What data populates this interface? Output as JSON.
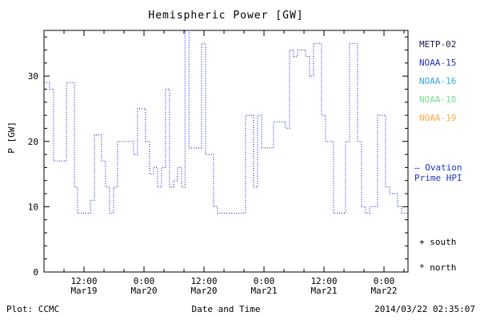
{
  "title": "Hemispheric Power [GW]",
  "footer": {
    "plot_credit": "Plot: CCMC",
    "timestamp": "2014/03/22 02:35:07"
  },
  "legend": {
    "satellites": [
      {
        "label": "METP-02",
        "color": "#1b1b4d"
      },
      {
        "label": "NOAA-15",
        "color": "#2233bb"
      },
      {
        "label": "NOAA-16",
        "color": "#33aadd"
      },
      {
        "label": "NOAA-18",
        "color": "#77dd88"
      },
      {
        "label": "NOAA-19",
        "color": "#ffaa44"
      }
    ],
    "line_entry": {
      "label": "Ovation Prime HPI",
      "display": "– Ovation\nPrime HPI",
      "color": "#2233bb"
    },
    "markers": [
      {
        "symbol": "+",
        "label": "south"
      },
      {
        "symbol": "*",
        "label": "north"
      }
    ]
  },
  "chart_data": {
    "type": "line",
    "subtype": "step-post",
    "line_style": "dotted",
    "title": "Hemispheric Power [GW]",
    "xlabel": "Date and Time",
    "ylabel": "P [GW]",
    "axis_color": "#000000",
    "x_unit": "hours since start of plot (2014 Mar 19 ~04:00 UT)",
    "xlim": [
      0,
      72.8
    ],
    "ylim": [
      0,
      37
    ],
    "yticks": [
      0,
      10,
      20,
      30
    ],
    "ytick_minor_interval": 2,
    "xtick_minor_interval": 4,
    "xticks": [
      {
        "pos": 8,
        "time": "12:00",
        "date": "Mar19"
      },
      {
        "pos": 20,
        "time": "0:00",
        "date": "Mar20"
      },
      {
        "pos": 32,
        "time": "12:00",
        "date": "Mar20"
      },
      {
        "pos": 44,
        "time": "0:00",
        "date": "Mar21"
      },
      {
        "pos": 56,
        "time": "12:00",
        "date": "Mar21"
      },
      {
        "pos": 68,
        "time": "0:00",
        "date": "Mar22"
      }
    ],
    "series": [
      {
        "name": "Ovation Prime HPI",
        "color": "#2233bb",
        "points": [
          [
            0,
            29
          ],
          [
            1.1,
            28
          ],
          [
            1.9,
            17
          ],
          [
            4.5,
            29
          ],
          [
            6.1,
            13
          ],
          [
            6.7,
            9
          ],
          [
            9.3,
            11
          ],
          [
            10.1,
            21
          ],
          [
            11.5,
            17
          ],
          [
            12.3,
            13
          ],
          [
            13.1,
            9
          ],
          [
            13.9,
            13
          ],
          [
            14.7,
            20
          ],
          [
            17.9,
            18
          ],
          [
            18.7,
            25
          ],
          [
            20.3,
            20
          ],
          [
            21.1,
            15
          ],
          [
            21.9,
            16
          ],
          [
            22.7,
            13
          ],
          [
            23.5,
            16
          ],
          [
            24.3,
            28
          ],
          [
            25.1,
            13
          ],
          [
            25.9,
            14
          ],
          [
            26.7,
            16
          ],
          [
            27.5,
            13
          ],
          [
            28.2,
            37
          ],
          [
            29,
            19
          ],
          [
            31.5,
            35
          ],
          [
            32.3,
            18
          ],
          [
            33.9,
            10
          ],
          [
            34.7,
            9
          ],
          [
            40.3,
            24
          ],
          [
            41.9,
            13
          ],
          [
            42.7,
            24
          ],
          [
            43.5,
            19
          ],
          [
            45.9,
            23
          ],
          [
            48.3,
            22
          ],
          [
            49.1,
            34
          ],
          [
            49.9,
            33
          ],
          [
            50.7,
            34
          ],
          [
            52.3,
            33
          ],
          [
            53.1,
            30
          ],
          [
            53.9,
            35
          ],
          [
            55.5,
            24
          ],
          [
            56.3,
            20
          ],
          [
            57.9,
            9
          ],
          [
            60.3,
            20
          ],
          [
            61.1,
            35
          ],
          [
            62.7,
            20
          ],
          [
            63.5,
            10
          ],
          [
            64.3,
            9
          ],
          [
            65.1,
            10
          ],
          [
            66.7,
            24
          ],
          [
            68.3,
            13
          ],
          [
            69.1,
            12
          ],
          [
            70.7,
            10
          ],
          [
            71.5,
            9
          ]
        ]
      }
    ]
  }
}
